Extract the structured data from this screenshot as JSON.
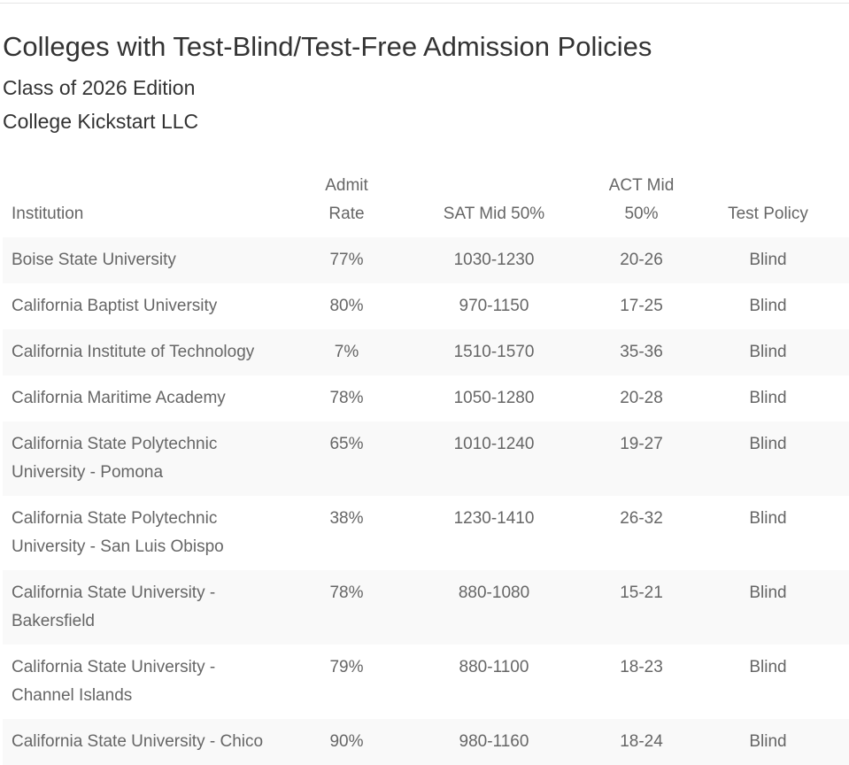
{
  "header": {
    "title": "Colleges with Test-Blind/Test-Free Admission Policies",
    "edition": "Class of 2026 Edition",
    "publisher": "College Kickstart LLC"
  },
  "table": {
    "columns": {
      "institution": "Institution",
      "admit_line1": "Admit",
      "admit_line2": "Rate",
      "sat": "SAT Mid 50%",
      "act_line1": "ACT Mid",
      "act_line2": "50%",
      "policy": "Test Policy"
    },
    "rows": [
      {
        "institution_line1": "Boise State University",
        "institution_line2": "",
        "admit_rate": "77%",
        "sat": "1030-1230",
        "act": "20-26",
        "policy": "Blind"
      },
      {
        "institution_line1": "California Baptist University",
        "institution_line2": "",
        "admit_rate": "80%",
        "sat": "970-1150",
        "act": "17-25",
        "policy": "Blind"
      },
      {
        "institution_line1": "California Institute of Technology",
        "institution_line2": "",
        "admit_rate": "7%",
        "sat": "1510-1570",
        "act": "35-36",
        "policy": "Blind"
      },
      {
        "institution_line1": "California Maritime Academy",
        "institution_line2": "",
        "admit_rate": "78%",
        "sat": "1050-1280",
        "act": "20-28",
        "policy": "Blind"
      },
      {
        "institution_line1": "California State Polytechnic",
        "institution_line2": "University - Pomona",
        "admit_rate": "65%",
        "sat": "1010-1240",
        "act": "19-27",
        "policy": "Blind"
      },
      {
        "institution_line1": "California State Polytechnic",
        "institution_line2": "University - San Luis Obispo",
        "admit_rate": "38%",
        "sat": "1230-1410",
        "act": "26-32",
        "policy": "Blind"
      },
      {
        "institution_line1": "California State University -",
        "institution_line2": "Bakersfield",
        "admit_rate": "78%",
        "sat": "880-1080",
        "act": "15-21",
        "policy": "Blind"
      },
      {
        "institution_line1": "California State University -",
        "institution_line2": "Channel Islands",
        "admit_rate": "79%",
        "sat": "880-1100",
        "act": "18-23",
        "policy": "Blind"
      },
      {
        "institution_line1": "California State University - Chico",
        "institution_line2": "",
        "admit_rate": "90%",
        "sat": "980-1160",
        "act": "18-24",
        "policy": "Blind"
      }
    ]
  }
}
